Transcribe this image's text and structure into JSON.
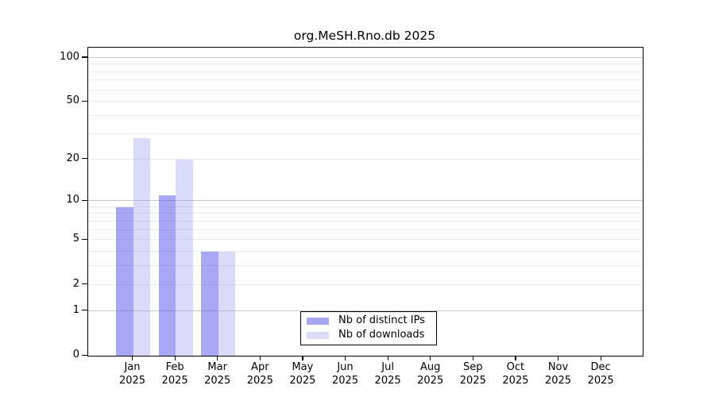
{
  "title": "org.MeSH.Rno.db 2025",
  "legend": {
    "items": [
      {
        "label": "Nb of distinct IPs",
        "color": "#a7a7f0"
      },
      {
        "label": "Nb of downloads",
        "color": "#dcdcf8"
      }
    ]
  },
  "colors": {
    "ips_bar_fill": "rgba(95,95,233,0.55)",
    "downloads_bar_fill": "rgba(139,139,236,0.32)",
    "grid_minor": "#ebebeb",
    "grid_major": "#c8c8c8",
    "axis": "#000000",
    "background": "#ffffff"
  },
  "chart_data": {
    "type": "bar",
    "title": "org.MeSH.Rno.db 2025",
    "categories": [
      "Jan",
      "Feb",
      "Mar",
      "Apr",
      "May",
      "Jun",
      "Jul",
      "Aug",
      "Sep",
      "Oct",
      "Nov",
      "Dec"
    ],
    "year": "2025",
    "series": [
      {
        "name": "Nb of distinct IPs",
        "values": [
          9,
          11,
          4,
          0,
          0,
          0,
          0,
          0,
          0,
          0,
          0,
          0
        ],
        "color": "#a7a7f0",
        "fill": "rgba(95,95,233,0.55)"
      },
      {
        "name": "Nb of downloads",
        "values": [
          28,
          20,
          4,
          0,
          0,
          0,
          0,
          0,
          0,
          0,
          0,
          0
        ],
        "color": "#dcdcf8",
        "fill": "rgba(139,139,236,0.32)"
      }
    ],
    "xlabel": "",
    "ylabel": "",
    "y_ticks": [
      0,
      1,
      2,
      5,
      10,
      20,
      50,
      100
    ],
    "gridline_values": [
      1,
      2,
      3,
      4,
      5,
      6,
      7,
      8,
      9,
      10,
      20,
      30,
      40,
      50,
      60,
      70,
      80,
      90,
      100
    ],
    "major_gridlines": [
      1,
      10,
      100
    ],
    "y_scale": "log1p",
    "ylim": [
      0,
      117
    ],
    "grid": true,
    "legend_position": "bottom-center-inside"
  }
}
